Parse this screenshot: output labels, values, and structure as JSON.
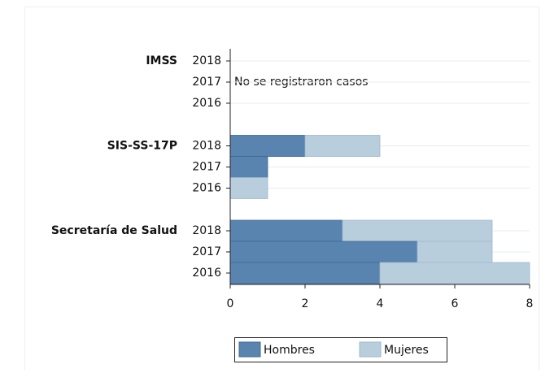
{
  "chart_data": {
    "type": "bar",
    "orientation": "horizontal",
    "stacked": true,
    "groups": [
      {
        "label": "IMSS",
        "categories": [
          "2018",
          "2017",
          "2016"
        ]
      },
      {
        "label": "SIS-SS-17P",
        "categories": [
          "2018",
          "2017",
          "2016"
        ]
      },
      {
        "label": "Secretaría de Salud",
        "categories": [
          "2018",
          "2017",
          "2016"
        ]
      }
    ],
    "series": [
      {
        "name": "Hombres",
        "color": "#5a84b0",
        "values": [
          0,
          0,
          0,
          2,
          1,
          0,
          3,
          5,
          4
        ]
      },
      {
        "name": "Mujeres",
        "color": "#b9cedd",
        "values": [
          0,
          0,
          0,
          2,
          0,
          1,
          4,
          2,
          4
        ]
      }
    ],
    "annotation": "No se registraron casos",
    "xlim": [
      0,
      8
    ],
    "xticks": [
      0,
      2,
      4,
      6,
      8
    ],
    "grid": true,
    "legend": "bottom"
  }
}
